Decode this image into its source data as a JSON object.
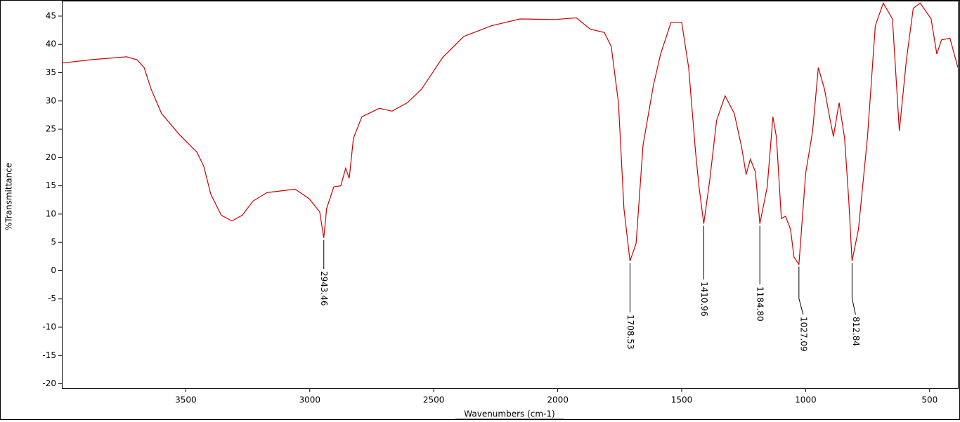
{
  "chart_data": {
    "type": "line",
    "x_label": "Wavenumbers (cm-1)",
    "y_label": "%Transmittance",
    "color": "#cc0000",
    "xlim": [
      4000,
      386
    ],
    "ylim": [
      -20.8,
      47.6
    ],
    "xticks": [
      3500,
      3000,
      2500,
      2000,
      1500,
      1000,
      500
    ],
    "yticks": [
      -20,
      -15,
      -10,
      -5,
      0,
      5,
      10,
      15,
      20,
      25,
      30,
      35,
      40,
      45
    ],
    "x": [
      4000,
      3881,
      3739,
      3697,
      3668,
      3640,
      3598,
      3527,
      3456,
      3428,
      3399,
      3357,
      3314,
      3272,
      3229,
      3173,
      3116,
      3059,
      3002,
      2960,
      2943.46,
      2932,
      2903,
      2875,
      2855,
      2841,
      2824,
      2790,
      2719,
      2668,
      2606,
      2549,
      2464,
      2379,
      2266,
      2152,
      2011,
      1925,
      1869,
      1812,
      1784,
      1755,
      1733,
      1708.53,
      1684,
      1656,
      1614,
      1585,
      1543,
      1500,
      1472,
      1444,
      1430,
      1410.96,
      1387,
      1359,
      1325,
      1288,
      1259,
      1240,
      1223,
      1203,
      1184.8,
      1155,
      1132,
      1118,
      1098,
      1081,
      1061,
      1047,
      1027.09,
      1000,
      972,
      949,
      924,
      901,
      888,
      865,
      843,
      826,
      812.84,
      787,
      751,
      719,
      687,
      650,
      622,
      594,
      566,
      538,
      494,
      471,
      452,
      418,
      386
    ],
    "values": [
      36.7,
      37.3,
      37.8,
      37.3,
      35.9,
      32.1,
      27.8,
      24.1,
      21.0,
      18.5,
      13.5,
      9.8,
      8.8,
      9.8,
      12.3,
      13.8,
      14.1,
      14.4,
      12.7,
      10.4,
      5.8,
      11.0,
      14.8,
      15.0,
      18.1,
      16.3,
      23.4,
      27.2,
      28.7,
      28.2,
      29.7,
      32.1,
      37.7,
      41.4,
      43.3,
      44.5,
      44.4,
      44.7,
      42.7,
      42.1,
      39.6,
      29.7,
      11.0,
      1.7,
      4.8,
      22.2,
      32.8,
      38.3,
      43.9,
      43.9,
      35.9,
      21.0,
      14.8,
      8.3,
      16.0,
      26.6,
      30.9,
      27.8,
      22.0,
      17.0,
      19.7,
      17.5,
      8.3,
      14.8,
      27.2,
      23.6,
      9.2,
      9.6,
      7.3,
      2.4,
      1.1,
      17.2,
      24.7,
      35.9,
      32.1,
      26.6,
      23.7,
      29.7,
      23.4,
      12.3,
      1.7,
      7.3,
      23.4,
      43.3,
      47.3,
      44.5,
      24.7,
      37.1,
      46.4,
      47.3,
      44.5,
      38.3,
      40.8,
      41.1,
      35.9
    ],
    "peaks": [
      {
        "x": 2943.46,
        "y": 5.8,
        "label": "2943.46"
      },
      {
        "x": 1708.53,
        "y": 1.7,
        "label": "1708.53"
      },
      {
        "x": 1410.96,
        "y": 8.3,
        "label": "1410.96"
      },
      {
        "x": 1184.8,
        "y": 8.3,
        "label": "1184.80"
      },
      {
        "x": 1027.09,
        "y": 1.1,
        "label": "1027.09"
      },
      {
        "x": 812.84,
        "y": 1.7,
        "label": "812.84"
      }
    ]
  }
}
